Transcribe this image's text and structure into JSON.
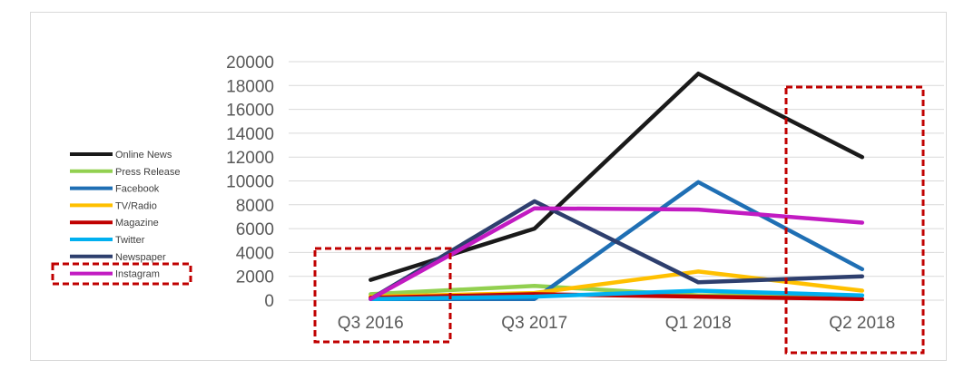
{
  "chart_data": {
    "type": "line",
    "categories": [
      "Q3 2016",
      "Q3 2017",
      "Q1 2018",
      "Q2 2018"
    ],
    "ylim": [
      0,
      20000
    ],
    "yticks": [
      0,
      2000,
      4000,
      6000,
      8000,
      10000,
      12000,
      14000,
      16000,
      18000,
      20000
    ],
    "grid": true,
    "legend_position": "left",
    "series": [
      {
        "name": "Online News",
        "color": "#1a1a1a",
        "values": [
          1700,
          6000,
          19000,
          12000
        ]
      },
      {
        "name": "Press Release",
        "color": "#92d050",
        "values": [
          500,
          1200,
          400,
          400
        ]
      },
      {
        "name": "Facebook",
        "color": "#1f6fb4",
        "values": [
          100,
          100,
          9900,
          2600
        ]
      },
      {
        "name": "TV/Radio",
        "color": "#ffc000",
        "values": [
          300,
          600,
          2400,
          800
        ]
      },
      {
        "name": "Magazine",
        "color": "#c00000",
        "values": [
          200,
          500,
          300,
          100
        ]
      },
      {
        "name": "Twitter",
        "color": "#00b0f0",
        "values": [
          100,
          300,
          800,
          400
        ]
      },
      {
        "name": "Newspaper",
        "color": "#2e3f6e",
        "values": [
          100,
          8300,
          1500,
          2000
        ]
      },
      {
        "name": "Instagram",
        "color": "#c21bc2",
        "values": [
          100,
          7700,
          7600,
          6500
        ]
      }
    ],
    "highlight_color": "#c00000"
  }
}
